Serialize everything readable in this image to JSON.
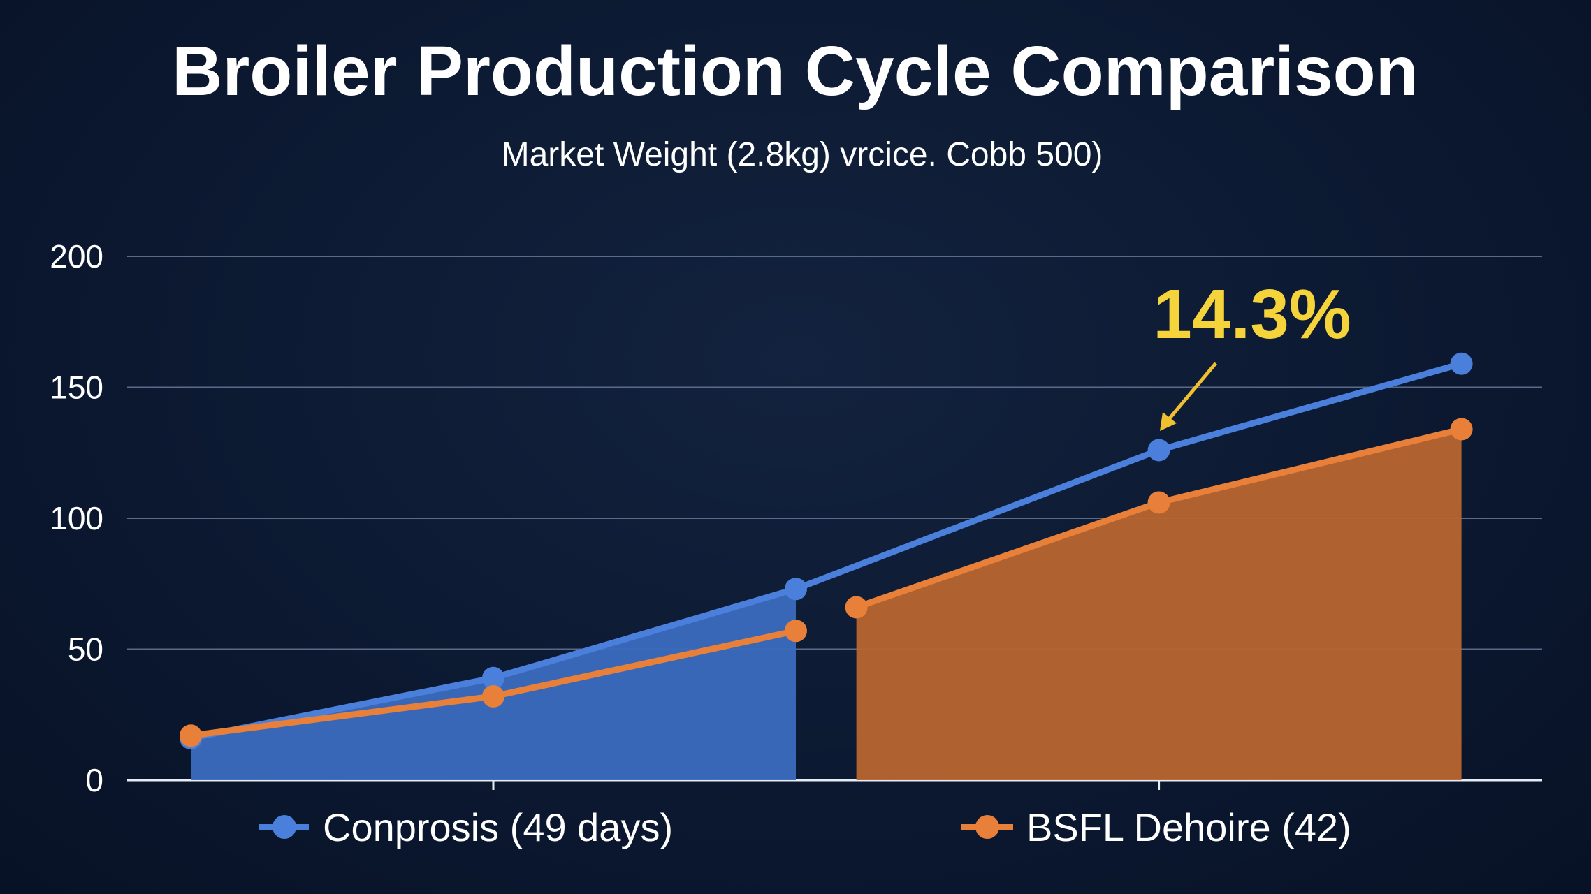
{
  "chart_data": {
    "type": "area",
    "title": "Broiler Production Cycle Comparison",
    "subtitle": "Market Weight (2.8kg) vrcice. Cobb 500)",
    "xlabel": "",
    "ylabel": "",
    "ylim": [
      0,
      200
    ],
    "yticks": [
      0,
      50,
      100,
      150,
      200
    ],
    "grid": true,
    "legend_position": "bottom",
    "annotation": {
      "text": "14.3%",
      "color": "#f5d33a",
      "points_to_series": "Conprosis (49 days)",
      "points_to_index": 3
    },
    "series": [
      {
        "name": "Conprosis (49 days)",
        "color": "#4a7fdc",
        "fill": "#3b6bc0",
        "x": [
          0,
          1,
          2,
          3.2,
          4.2
        ],
        "values": [
          16,
          39,
          73,
          126,
          159
        ],
        "filled_through_index": 2
      },
      {
        "name": "BSFL Dehoire (42)",
        "color": "#e8803a",
        "fill": "#b8652f",
        "x": [
          0,
          1,
          2,
          2.2,
          3.2,
          4.2
        ],
        "values": [
          17,
          32,
          57,
          66,
          106,
          134
        ],
        "filled_from_index": 3
      }
    ]
  }
}
